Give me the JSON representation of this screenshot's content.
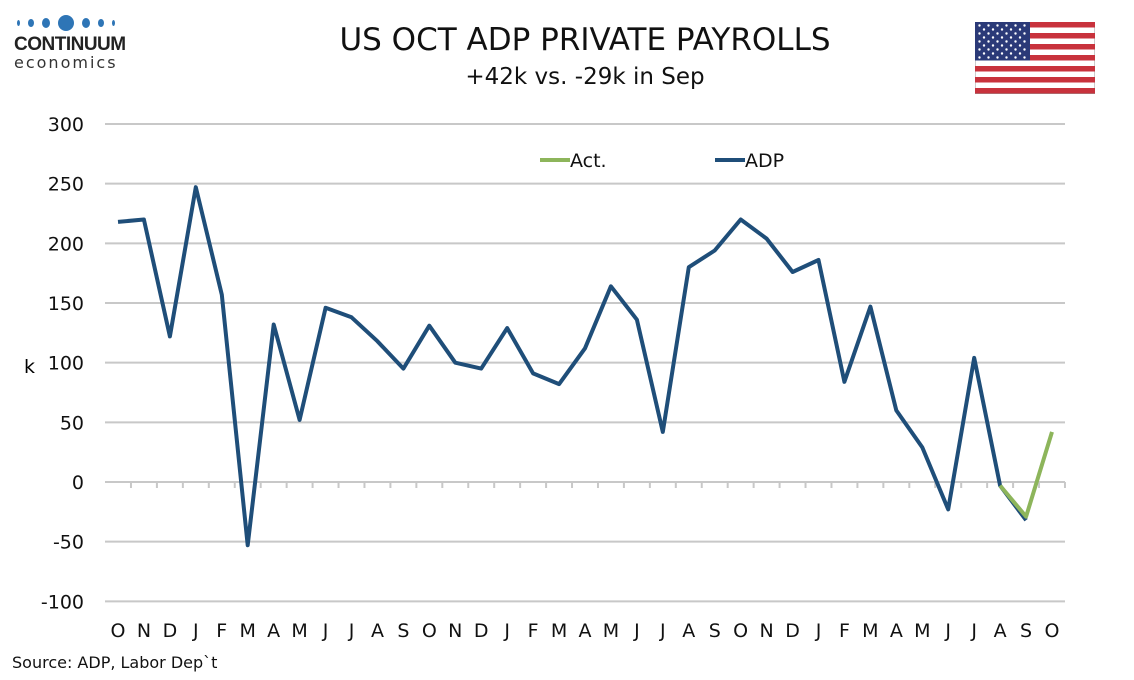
{
  "header": {
    "title": "US OCT ADP PRIVATE PAYROLLS",
    "subtitle": "+42k vs. -29k in Sep"
  },
  "logo": {
    "line1": "CONTINUUM",
    "line2": "economics"
  },
  "source": "Source: ADP, Labor Dep`t",
  "chart_data": {
    "type": "line",
    "title": "US OCT ADP PRIVATE PAYROLLS",
    "ylabel": "k",
    "xlabel": "",
    "ylim": [
      -100,
      300
    ],
    "yticks": [
      300,
      250,
      200,
      150,
      100,
      50,
      0,
      -50,
      -100
    ],
    "grid": true,
    "legend_position": "top-center",
    "categories": [
      "O",
      "N",
      "D",
      "J",
      "F",
      "M",
      "A",
      "M",
      "J",
      "J",
      "A",
      "S",
      "O",
      "N",
      "D",
      "J",
      "F",
      "M",
      "A",
      "M",
      "J",
      "J",
      "A",
      "S",
      "O",
      "N",
      "D",
      "J",
      "F",
      "M",
      "A",
      "M",
      "J",
      "J",
      "A",
      "S",
      "O"
    ],
    "series": [
      {
        "name": "Act.",
        "color": "#8db55b",
        "values": [
          null,
          null,
          null,
          null,
          null,
          null,
          null,
          null,
          null,
          null,
          null,
          null,
          null,
          null,
          null,
          null,
          null,
          null,
          null,
          null,
          null,
          null,
          null,
          null,
          null,
          null,
          null,
          null,
          null,
          null,
          null,
          null,
          null,
          null,
          -3,
          -29,
          42
        ]
      },
      {
        "name": "ADP",
        "color": "#1f4e79",
        "values": [
          218,
          220,
          122,
          247,
          157,
          -53,
          132,
          52,
          146,
          138,
          118,
          95,
          131,
          100,
          95,
          129,
          91,
          82,
          112,
          164,
          136,
          42,
          180,
          194,
          220,
          204,
          176,
          186,
          84,
          147,
          60,
          29,
          -23,
          104,
          -3,
          -32,
          null
        ]
      }
    ]
  }
}
